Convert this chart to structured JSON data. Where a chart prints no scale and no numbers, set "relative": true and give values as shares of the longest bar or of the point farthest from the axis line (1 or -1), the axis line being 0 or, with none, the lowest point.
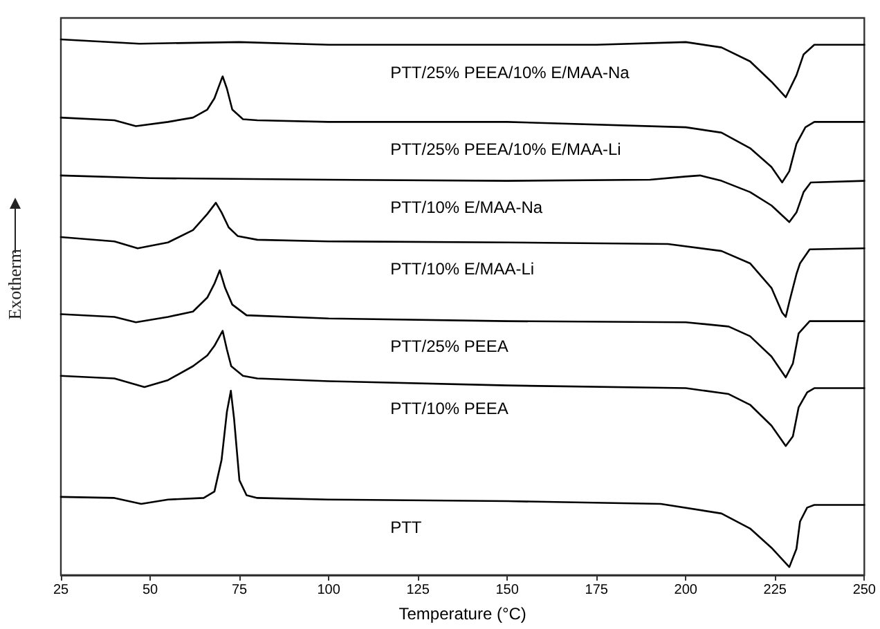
{
  "chart_data": {
    "type": "line",
    "relative": true,
    "xlabel": "Temperature (°C)",
    "ylabel": "Exotherm",
    "xlim": [
      25,
      250
    ],
    "xticks": [
      25,
      50,
      75,
      100,
      125,
      150,
      175,
      200,
      225,
      250
    ],
    "tick_labels": "x",
    "grid": false,
    "legend": false,
    "marker": "none",
    "line_style": "solid",
    "series": [
      {
        "name": "PTT/25% PEEA/10% E/MAA-Na",
        "color": "#000000",
        "x": [
          25,
          47,
          75,
          100,
          125,
          150,
          175,
          200,
          210,
          218,
          224,
          228,
          231,
          233,
          236,
          250
        ],
        "values": [
          1.0,
          0.992,
          0.995,
          0.99,
          0.99,
          0.99,
          0.99,
          0.995,
          0.985,
          0.959,
          0.921,
          0.892,
          0.933,
          0.972,
          0.99,
          0.99
        ]
      },
      {
        "name": "PTT/25% PEEA/10% E/MAA-Li",
        "color": "#000000",
        "x": [
          25,
          40,
          46,
          55,
          62,
          66,
          68,
          70,
          70.3,
          71.5,
          73,
          76,
          80,
          100,
          150,
          200,
          210,
          218,
          224,
          227,
          229,
          231,
          233.5,
          236,
          250
        ],
        "values": [
          0.854,
          0.849,
          0.838,
          0.846,
          0.854,
          0.869,
          0.89,
          0.926,
          0.931,
          0.908,
          0.869,
          0.851,
          0.849,
          0.846,
          0.846,
          0.836,
          0.826,
          0.797,
          0.762,
          0.733,
          0.754,
          0.805,
          0.836,
          0.846,
          0.846
        ]
      },
      {
        "name": "PTT/10% E/MAA-Na",
        "color": "#000000",
        "x": [
          25,
          50,
          100,
          150,
          190,
          200,
          204,
          210,
          218,
          224,
          229,
          231,
          233,
          235,
          250
        ],
        "values": [
          0.746,
          0.741,
          0.738,
          0.736,
          0.738,
          0.744,
          0.746,
          0.736,
          0.715,
          0.69,
          0.659,
          0.677,
          0.715,
          0.733,
          0.736
        ]
      },
      {
        "name": "PTT/10% E/MAA-Li",
        "color": "#000000",
        "x": [
          25,
          40,
          46.5,
          55,
          62,
          66,
          68.4,
          70,
          72,
          74.5,
          80,
          100,
          150,
          195,
          210,
          218,
          224,
          227,
          228,
          229,
          231,
          232,
          234.7,
          250
        ],
        "values": [
          0.631,
          0.623,
          0.61,
          0.621,
          0.644,
          0.674,
          0.695,
          0.677,
          0.649,
          0.633,
          0.626,
          0.623,
          0.621,
          0.618,
          0.605,
          0.582,
          0.536,
          0.49,
          0.482,
          0.51,
          0.562,
          0.582,
          0.608,
          0.61
        ]
      },
      {
        "name": "PTT/25% PEEA",
        "color": "#000000",
        "x": [
          25,
          40,
          46,
          55,
          62,
          66,
          68,
          69.5,
          71,
          73,
          77,
          100,
          150,
          200,
          212,
          218,
          224,
          228,
          230,
          231.6,
          234.7,
          250
        ],
        "values": [
          0.487,
          0.482,
          0.472,
          0.482,
          0.492,
          0.518,
          0.544,
          0.569,
          0.536,
          0.505,
          0.485,
          0.479,
          0.474,
          0.472,
          0.464,
          0.446,
          0.408,
          0.369,
          0.395,
          0.451,
          0.474,
          0.474
        ]
      },
      {
        "name": "PTT/10% PEEA",
        "color": "#000000",
        "x": [
          25,
          40,
          48.4,
          55,
          62,
          66,
          68,
          70.3,
          71.5,
          72.7,
          76,
          80,
          100,
          150,
          200,
          212,
          218,
          224,
          228,
          230,
          231.6,
          234,
          236,
          250
        ],
        "values": [
          0.372,
          0.367,
          0.351,
          0.364,
          0.39,
          0.41,
          0.428,
          0.456,
          0.421,
          0.39,
          0.372,
          0.367,
          0.362,
          0.354,
          0.349,
          0.338,
          0.318,
          0.279,
          0.241,
          0.259,
          0.313,
          0.341,
          0.349,
          0.349
        ]
      },
      {
        "name": "PTT",
        "color": "#000000",
        "x": [
          25,
          40,
          47.5,
          55,
          65,
          68,
          70,
          71.5,
          72.6,
          73.5,
          75,
          77,
          80,
          100,
          150,
          193,
          210,
          218,
          224,
          229,
          231,
          232,
          234,
          236,
          250
        ],
        "values": [
          0.146,
          0.144,
          0.133,
          0.141,
          0.144,
          0.156,
          0.215,
          0.305,
          0.344,
          0.292,
          0.177,
          0.149,
          0.144,
          0.141,
          0.138,
          0.133,
          0.115,
          0.087,
          0.051,
          0.015,
          0.049,
          0.1,
          0.126,
          0.131,
          0.131
        ]
      }
    ]
  }
}
